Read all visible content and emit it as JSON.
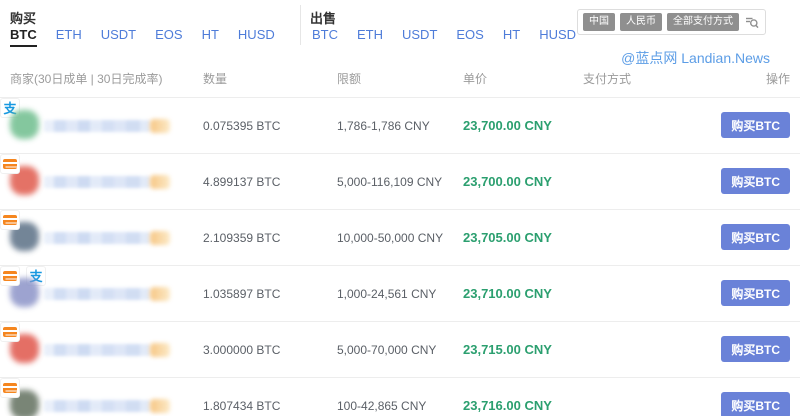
{
  "buy_section": {
    "title": "购买",
    "tabs": [
      {
        "label": "BTC",
        "active": true
      },
      {
        "label": "ETH",
        "active": false
      },
      {
        "label": "USDT",
        "active": false
      },
      {
        "label": "EOS",
        "active": false
      },
      {
        "label": "HT",
        "active": false
      },
      {
        "label": "HUSD",
        "active": false
      }
    ]
  },
  "sell_section": {
    "title": "出售",
    "tabs": [
      {
        "label": "BTC",
        "active": false
      },
      {
        "label": "ETH",
        "active": false
      },
      {
        "label": "USDT",
        "active": false
      },
      {
        "label": "EOS",
        "active": false
      },
      {
        "label": "HT",
        "active": false
      },
      {
        "label": "HUSD",
        "active": false
      }
    ]
  },
  "filter_bar": {
    "region": "中国",
    "currency": "人民币",
    "payment": "全部支付方式"
  },
  "watermark": "@蓝点网 Landian.News",
  "table": {
    "headers": {
      "merchant": "商家(30日成单 | 30日完成率)",
      "amount": "数量",
      "limit": "限额",
      "price": "单价",
      "payment": "支付方式",
      "action": "操作"
    },
    "rows": [
      {
        "amount": "0.075395 BTC",
        "limit": "1,786-1,786 CNY",
        "price": "23,700.00 CNY",
        "payments": [
          "alipay"
        ],
        "action": "购买BTC",
        "avatar_color": "#6fbe8e"
      },
      {
        "amount": "4.899137 BTC",
        "limit": "5,000-116,109 CNY",
        "price": "23,700.00 CNY",
        "payments": [
          "bankcard"
        ],
        "action": "购买BTC",
        "avatar_color": "#e05a4c"
      },
      {
        "amount": "2.109359 BTC",
        "limit": "10,000-50,000 CNY",
        "price": "23,705.00 CNY",
        "payments": [
          "bankcard"
        ],
        "action": "购买BTC",
        "avatar_color": "#5b7086"
      },
      {
        "amount": "1.035897 BTC",
        "limit": "1,000-24,561 CNY",
        "price": "23,710.00 CNY",
        "payments": [
          "bankcard",
          "alipay"
        ],
        "action": "购买BTC",
        "avatar_color": "#8c94c8"
      },
      {
        "amount": "3.000000 BTC",
        "limit": "5,000-70,000 CNY",
        "price": "23,715.00 CNY",
        "payments": [
          "bankcard"
        ],
        "action": "购买BTC",
        "avatar_color": "#e0564b"
      },
      {
        "amount": "1.807434 BTC",
        "limit": "100-42,865 CNY",
        "price": "23,716.00 CNY",
        "payments": [
          "bankcard"
        ],
        "action": "购买BTC",
        "avatar_color": "#62705f"
      }
    ]
  },
  "icons": {
    "alipay_glyph": "支"
  },
  "colors": {
    "tab_blue": "#4e7cd9",
    "price_green": "#2b9f6f",
    "buy_button_blue": "#6a82d8",
    "bankcard_orange": "#f5861f",
    "alipay_blue": "#1698e0",
    "filter_pill_gray": "#8f8f8f",
    "watermark_blue": "#5c9de6"
  }
}
